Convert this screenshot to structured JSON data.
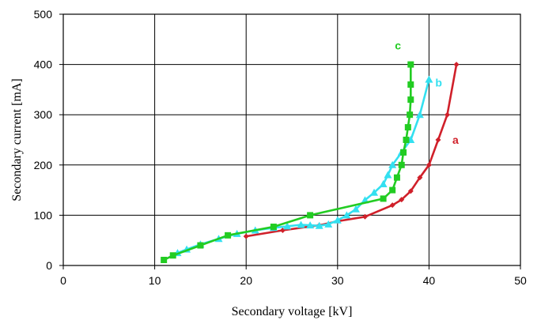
{
  "chart_data": {
    "type": "line",
    "xlabel": "Secondary voltage [kV]",
    "ylabel": "Secondary current [mA]",
    "xlim": [
      0,
      50
    ],
    "ylim": [
      0,
      500
    ],
    "xticks": [
      "0",
      "10",
      "20",
      "30",
      "40",
      "50"
    ],
    "yticks": [
      "0",
      "100",
      "200",
      "300",
      "400",
      "500"
    ],
    "grid": true,
    "series": [
      {
        "name": "a",
        "color": "#d0202a",
        "marker": "diamond",
        "points": [
          [
            20,
            58
          ],
          [
            24,
            70
          ],
          [
            28,
            80
          ],
          [
            30,
            88
          ],
          [
            33,
            97
          ],
          [
            36,
            120
          ],
          [
            37,
            131
          ],
          [
            38,
            148
          ],
          [
            39,
            175
          ],
          [
            40,
            200
          ],
          [
            41,
            250
          ],
          [
            42,
            300
          ],
          [
            43,
            400
          ]
        ]
      },
      {
        "name": "b",
        "color": "#33e0f0",
        "marker": "triangle",
        "points": [
          [
            12.5,
            25
          ],
          [
            13.5,
            32
          ],
          [
            15,
            42
          ],
          [
            17,
            53
          ],
          [
            19,
            63
          ],
          [
            21,
            70
          ],
          [
            23,
            75
          ],
          [
            24.5,
            78
          ],
          [
            26,
            81
          ],
          [
            27,
            80
          ],
          [
            28,
            79
          ],
          [
            29,
            82
          ],
          [
            30,
            90
          ],
          [
            31,
            100
          ],
          [
            32,
            112
          ],
          [
            33,
            130
          ],
          [
            34,
            145
          ],
          [
            35,
            162
          ],
          [
            35.5,
            180
          ],
          [
            36,
            200
          ],
          [
            37,
            225
          ],
          [
            38,
            250
          ],
          [
            39,
            300
          ],
          [
            40,
            370
          ]
        ]
      },
      {
        "name": "c",
        "color": "#22cc22",
        "marker": "square",
        "points": [
          [
            11,
            11
          ],
          [
            12,
            20
          ],
          [
            15,
            40
          ],
          [
            18,
            60
          ],
          [
            23,
            77
          ],
          [
            27,
            100
          ],
          [
            35,
            133
          ],
          [
            36,
            150
          ],
          [
            36.5,
            175
          ],
          [
            37,
            200
          ],
          [
            37.2,
            225
          ],
          [
            37.5,
            250
          ],
          [
            37.7,
            275
          ],
          [
            37.9,
            300
          ],
          [
            38,
            330
          ],
          [
            38,
            360
          ],
          [
            38,
            400
          ]
        ]
      }
    ]
  }
}
